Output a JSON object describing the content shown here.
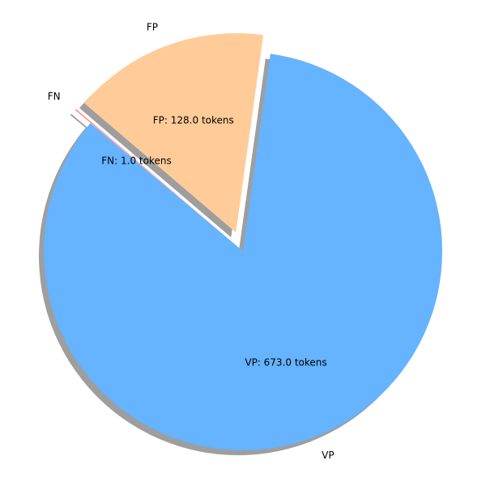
{
  "chart_data": {
    "type": "pie",
    "title": "",
    "start_angle_deg": 140,
    "shadow": true,
    "slices": [
      {
        "label": "VP",
        "value": 673.0,
        "value_label": "VP: 673.0 tokens",
        "color": "#66b3ff",
        "exploded": false
      },
      {
        "label": "FP",
        "value": 128.0,
        "value_label": "FP: 128.0 tokens",
        "color": "#ffcc99",
        "exploded": true
      },
      {
        "label": "FN",
        "value": 1.0,
        "value_label": "FN: 1.0 tokens",
        "color": "#ff9999",
        "exploded": true
      }
    ]
  }
}
